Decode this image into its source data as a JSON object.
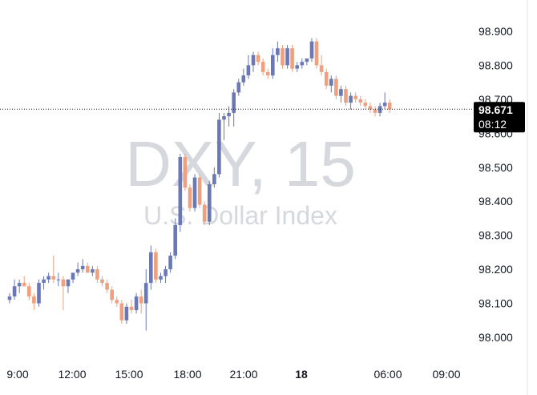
{
  "chart_data": {
    "type": "candlestick",
    "symbol": "DXY",
    "interval": "15",
    "name": "U.S. Dollar Index",
    "last_price": "98.671",
    "countdown": "08:12",
    "colors": {
      "up": "#6a78b4",
      "down": "#f0a07e",
      "text": "#131722",
      "watermark": "#d6d8de",
      "tag_bg": "#000000"
    },
    "y_ticks": [
      "98.000",
      "98.100",
      "98.200",
      "98.300",
      "98.400",
      "98.500",
      "98.600",
      "98.700",
      "98.800",
      "98.900"
    ],
    "x_ticks": [
      "9:00",
      "12:00",
      "15:00",
      "18:00",
      "21:00",
      "18",
      "06:00",
      "09:00"
    ],
    "ylim": [
      97.9,
      98.99
    ],
    "candles": [
      [
        98.11,
        98.13,
        98.1,
        98.12
      ],
      [
        98.12,
        98.17,
        98.11,
        98.15
      ],
      [
        98.15,
        98.17,
        98.13,
        98.16
      ],
      [
        98.16,
        98.18,
        98.15,
        98.15
      ],
      [
        98.15,
        98.16,
        98.11,
        98.12
      ],
      [
        98.12,
        98.13,
        98.08,
        98.1
      ],
      [
        98.1,
        98.17,
        98.09,
        98.16
      ],
      [
        98.16,
        98.18,
        98.14,
        98.17
      ],
      [
        98.17,
        98.19,
        98.16,
        98.18
      ],
      [
        98.18,
        98.24,
        98.16,
        98.17
      ],
      [
        98.17,
        98.19,
        98.15,
        98.17
      ],
      [
        98.17,
        98.18,
        98.08,
        98.15
      ],
      [
        98.15,
        98.17,
        98.13,
        98.17
      ],
      [
        98.17,
        98.19,
        98.16,
        98.19
      ],
      [
        98.19,
        98.22,
        98.18,
        98.2
      ],
      [
        98.2,
        98.23,
        98.19,
        98.21
      ],
      [
        98.21,
        98.22,
        98.19,
        98.19
      ],
      [
        98.19,
        98.21,
        98.18,
        98.2
      ],
      [
        98.2,
        98.21,
        98.16,
        98.17
      ],
      [
        98.17,
        98.18,
        98.15,
        98.16
      ],
      [
        98.16,
        98.17,
        98.13,
        98.14
      ],
      [
        98.14,
        98.15,
        98.1,
        98.11
      ],
      [
        98.11,
        98.12,
        98.09,
        98.1
      ],
      [
        98.1,
        98.11,
        98.04,
        98.05
      ],
      [
        98.05,
        98.1,
        98.04,
        98.09
      ],
      [
        98.09,
        98.11,
        98.07,
        98.08
      ],
      [
        98.08,
        98.13,
        98.07,
        98.12
      ],
      [
        98.12,
        98.14,
        98.07,
        98.1
      ],
      [
        98.1,
        98.2,
        98.02,
        98.16
      ],
      [
        98.16,
        98.27,
        98.14,
        98.25
      ],
      [
        98.25,
        98.26,
        98.16,
        98.17
      ],
      [
        98.17,
        98.19,
        98.16,
        98.18
      ],
      [
        98.18,
        98.21,
        98.16,
        98.2
      ],
      [
        98.2,
        98.25,
        98.19,
        98.24
      ],
      [
        98.24,
        98.35,
        98.23,
        98.33
      ],
      [
        98.33,
        98.54,
        98.31,
        98.53
      ],
      [
        98.53,
        98.54,
        98.43,
        98.44
      ],
      [
        98.44,
        98.45,
        98.37,
        98.38
      ],
      [
        98.38,
        98.48,
        98.37,
        98.47
      ],
      [
        98.47,
        98.48,
        98.38,
        98.39
      ],
      [
        98.39,
        98.4,
        98.33,
        98.34
      ],
      [
        98.34,
        98.46,
        98.33,
        98.45
      ],
      [
        98.45,
        98.5,
        98.44,
        98.48
      ],
      [
        98.48,
        98.66,
        98.47,
        98.64
      ],
      [
        98.64,
        98.66,
        98.58,
        98.65
      ],
      [
        98.65,
        98.68,
        98.62,
        98.66
      ],
      [
        98.66,
        98.73,
        98.62,
        98.72
      ],
      [
        98.72,
        98.76,
        98.71,
        98.75
      ],
      [
        98.75,
        98.79,
        98.74,
        98.77
      ],
      [
        98.77,
        98.83,
        98.76,
        98.8
      ],
      [
        98.8,
        98.84,
        98.78,
        98.83
      ],
      [
        98.83,
        98.84,
        98.8,
        98.81
      ],
      [
        98.81,
        98.82,
        98.77,
        98.78
      ],
      [
        98.78,
        98.79,
        98.76,
        98.77
      ],
      [
        98.77,
        98.85,
        98.76,
        98.83
      ],
      [
        98.83,
        98.87,
        98.81,
        98.85
      ],
      [
        98.85,
        98.86,
        98.79,
        98.8
      ],
      [
        98.8,
        98.86,
        98.79,
        98.85
      ],
      [
        98.85,
        98.86,
        98.78,
        98.79
      ],
      [
        98.79,
        98.81,
        98.78,
        98.8
      ],
      [
        98.8,
        98.82,
        98.79,
        98.81
      ],
      [
        98.81,
        98.82,
        98.8,
        98.82
      ],
      [
        98.82,
        98.88,
        98.81,
        98.87
      ],
      [
        98.87,
        98.88,
        98.79,
        98.8
      ],
      [
        98.8,
        98.83,
        98.77,
        98.78
      ],
      [
        98.78,
        98.79,
        98.73,
        98.74
      ],
      [
        98.74,
        98.77,
        98.72,
        98.76
      ],
      [
        98.76,
        98.77,
        98.7,
        98.71
      ],
      [
        98.71,
        98.74,
        98.69,
        98.73
      ],
      [
        98.73,
        98.74,
        98.68,
        98.69
      ],
      [
        98.69,
        98.72,
        98.67,
        98.71
      ],
      [
        98.71,
        98.72,
        98.69,
        98.7
      ],
      [
        98.7,
        98.71,
        98.68,
        98.69
      ],
      [
        98.69,
        98.7,
        98.67,
        98.68
      ],
      [
        98.68,
        98.69,
        98.66,
        98.67
      ],
      [
        98.67,
        98.68,
        98.65,
        98.66
      ],
      [
        98.66,
        98.69,
        98.65,
        98.68
      ],
      [
        98.68,
        98.72,
        98.67,
        98.69
      ],
      [
        98.69,
        98.7,
        98.66,
        98.67
      ]
    ]
  }
}
